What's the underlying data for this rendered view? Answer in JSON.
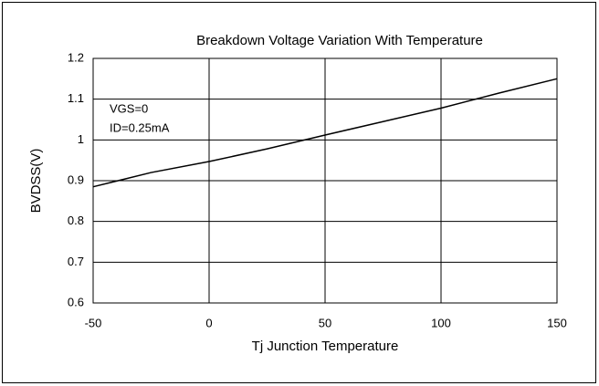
{
  "chart_data": {
    "type": "line",
    "title": "Breakdown Voltage Variation With Temperature",
    "x_label": "Tj Junction Temperature",
    "y_label": "BVDSS(V)",
    "annotations": [
      "VGS=0",
      "ID=0.25mA"
    ],
    "x": [
      -50,
      -25,
      0,
      25,
      50,
      75,
      100,
      125,
      150
    ],
    "series": [
      {
        "name": "BVDSS",
        "color": "#000000",
        "values": [
          0.885,
          0.92,
          0.947,
          0.978,
          1.012,
          1.045,
          1.078,
          1.115,
          1.15
        ]
      }
    ],
    "xlim": [
      -50,
      150
    ],
    "xticks": [
      -50,
      0,
      50,
      100,
      150
    ],
    "ylim": [
      0.6,
      1.2
    ],
    "yticks": [
      0.6,
      0.7,
      0.8,
      0.9,
      1,
      1.1,
      1.2
    ],
    "grid": true
  }
}
